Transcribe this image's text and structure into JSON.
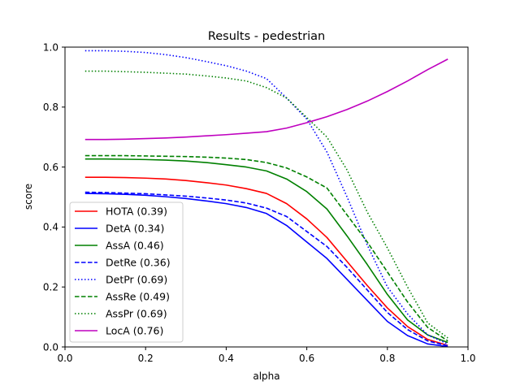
{
  "chart_data": {
    "type": "line",
    "title": "Results - pedestrian",
    "xlabel": "alpha",
    "ylabel": "score",
    "xlim": [
      0.0,
      1.0
    ],
    "ylim": [
      0.0,
      1.0
    ],
    "xticks": [
      "0.0",
      "0.2",
      "0.4",
      "0.6",
      "0.8",
      "1.0"
    ],
    "yticks": [
      "0.0",
      "0.2",
      "0.4",
      "0.6",
      "0.8",
      "1.0"
    ],
    "grid": false,
    "legend_position": "lower-left",
    "x": [
      0.05,
      0.1,
      0.15,
      0.2,
      0.25,
      0.3,
      0.35,
      0.4,
      0.45,
      0.5,
      0.55,
      0.6,
      0.65,
      0.7,
      0.75,
      0.8,
      0.85,
      0.9,
      0.95
    ],
    "series": [
      {
        "name": "HOTA (0.39)",
        "color": "#ff0000",
        "dash": "solid",
        "values": [
          0.566,
          0.566,
          0.565,
          0.563,
          0.56,
          0.555,
          0.548,
          0.54,
          0.528,
          0.512,
          0.478,
          0.427,
          0.365,
          0.285,
          0.205,
          0.13,
          0.068,
          0.025,
          0.005
        ]
      },
      {
        "name": "DetA (0.34)",
        "color": "#0000ff",
        "dash": "solid",
        "values": [
          0.512,
          0.511,
          0.509,
          0.506,
          0.501,
          0.495,
          0.487,
          0.478,
          0.465,
          0.445,
          0.405,
          0.35,
          0.295,
          0.225,
          0.155,
          0.085,
          0.038,
          0.01,
          0.001
        ]
      },
      {
        "name": "AssA (0.46)",
        "color": "#008000",
        "dash": "solid",
        "values": [
          0.627,
          0.627,
          0.626,
          0.625,
          0.623,
          0.62,
          0.615,
          0.608,
          0.6,
          0.587,
          0.56,
          0.518,
          0.46,
          0.37,
          0.275,
          0.175,
          0.09,
          0.04,
          0.015
        ]
      },
      {
        "name": "DetRe (0.36)",
        "color": "#0000ff",
        "dash": "dashed",
        "values": [
          0.516,
          0.515,
          0.513,
          0.511,
          0.507,
          0.503,
          0.497,
          0.49,
          0.48,
          0.463,
          0.435,
          0.385,
          0.335,
          0.265,
          0.19,
          0.115,
          0.058,
          0.02,
          0.004
        ]
      },
      {
        "name": "DetPr (0.69)",
        "color": "#0000ff",
        "dash": "dotted",
        "values": [
          0.988,
          0.988,
          0.986,
          0.982,
          0.975,
          0.965,
          0.952,
          0.938,
          0.92,
          0.895,
          0.83,
          0.76,
          0.65,
          0.5,
          0.34,
          0.2,
          0.11,
          0.04,
          0.01
        ]
      },
      {
        "name": "AssRe (0.49)",
        "color": "#008000",
        "dash": "dashed",
        "values": [
          0.638,
          0.638,
          0.638,
          0.637,
          0.636,
          0.635,
          0.633,
          0.63,
          0.625,
          0.615,
          0.597,
          0.567,
          0.53,
          0.44,
          0.35,
          0.25,
          0.15,
          0.065,
          0.02
        ]
      },
      {
        "name": "AssPr (0.69)",
        "color": "#008000",
        "dash": "dotted",
        "values": [
          0.92,
          0.92,
          0.918,
          0.916,
          0.913,
          0.91,
          0.904,
          0.897,
          0.887,
          0.865,
          0.83,
          0.765,
          0.7,
          0.59,
          0.45,
          0.33,
          0.2,
          0.08,
          0.03
        ]
      },
      {
        "name": "LocA (0.76)",
        "color": "#bf00bf",
        "dash": "solid",
        "values": [
          0.692,
          0.692,
          0.693,
          0.695,
          0.697,
          0.7,
          0.704,
          0.708,
          0.713,
          0.718,
          0.73,
          0.748,
          0.768,
          0.792,
          0.82,
          0.852,
          0.887,
          0.925,
          0.96
        ]
      }
    ]
  }
}
